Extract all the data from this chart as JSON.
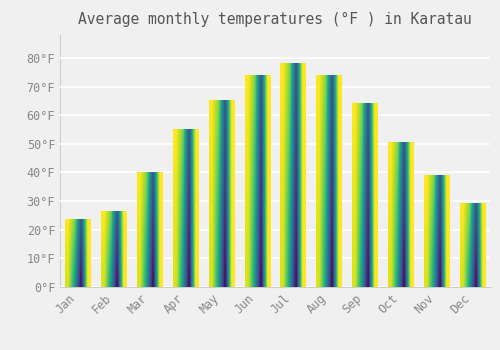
{
  "title": "Average monthly temperatures (°F ) in Karatau",
  "months": [
    "Jan",
    "Feb",
    "Mar",
    "Apr",
    "May",
    "Jun",
    "Jul",
    "Aug",
    "Sep",
    "Oct",
    "Nov",
    "Dec"
  ],
  "values": [
    23.5,
    26.5,
    40,
    55,
    65,
    74,
    78,
    74,
    64,
    50.5,
    39,
    29
  ],
  "bar_color_bright": "#FFCC00",
  "bar_color_mid": "#FFA500",
  "bar_color_dark": "#F08000",
  "background_color": "#f0f0f0",
  "grid_color": "#ffffff",
  "tick_label_color": "#888888",
  "title_color": "#555555",
  "ylim": [
    0,
    88
  ],
  "yticks": [
    0,
    10,
    20,
    30,
    40,
    50,
    60,
    70,
    80
  ],
  "ytick_labels": [
    "0°F",
    "10°F",
    "20°F",
    "30°F",
    "40°F",
    "50°F",
    "60°F",
    "70°F",
    "80°F"
  ],
  "font_family": "monospace",
  "title_fontsize": 10.5,
  "tick_fontsize": 8.5
}
